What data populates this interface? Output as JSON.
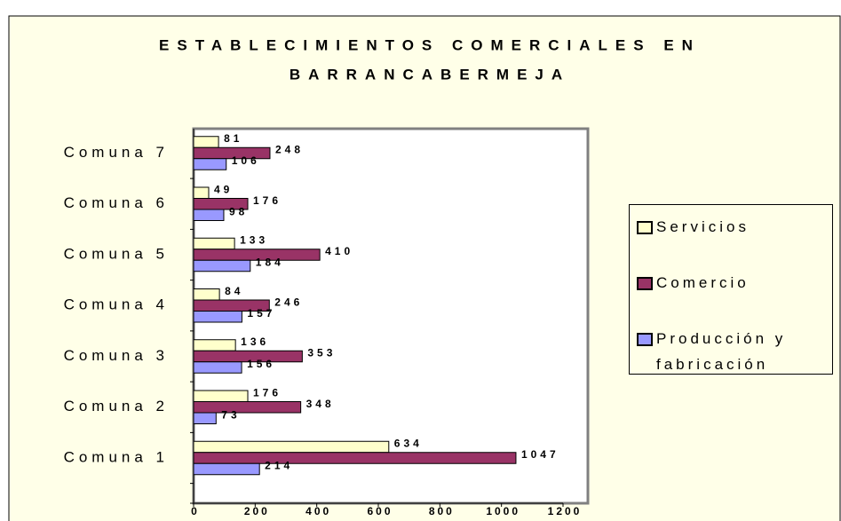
{
  "chart_data": {
    "type": "barh",
    "title": [
      "ESTABLECIMIENTOS COMERCIALES EN",
      "BARRANCABERMEJA"
    ],
    "categories": [
      "Comuna 1",
      "Comuna 2",
      "Comuna 3",
      "Comuna 4",
      "Comuna 5",
      "Comuna 6",
      "Comuna 7"
    ],
    "series": [
      {
        "name": "Servicios",
        "color": "#FFFFCC",
        "values": [
          634,
          176,
          136,
          84,
          133,
          49,
          81
        ]
      },
      {
        "name": "Comercio",
        "color": "#993366",
        "values": [
          1047,
          348,
          353,
          246,
          410,
          176,
          248
        ]
      },
      {
        "name": "Producción y fabricación",
        "color": "#9999FF",
        "values": [
          214,
          73,
          156,
          157,
          184,
          98,
          106
        ]
      }
    ],
    "xlim": [
      0,
      1200
    ],
    "xticks": [
      0,
      200,
      400,
      600,
      800,
      1000,
      1200
    ],
    "legend": "right",
    "data_labels": true
  }
}
